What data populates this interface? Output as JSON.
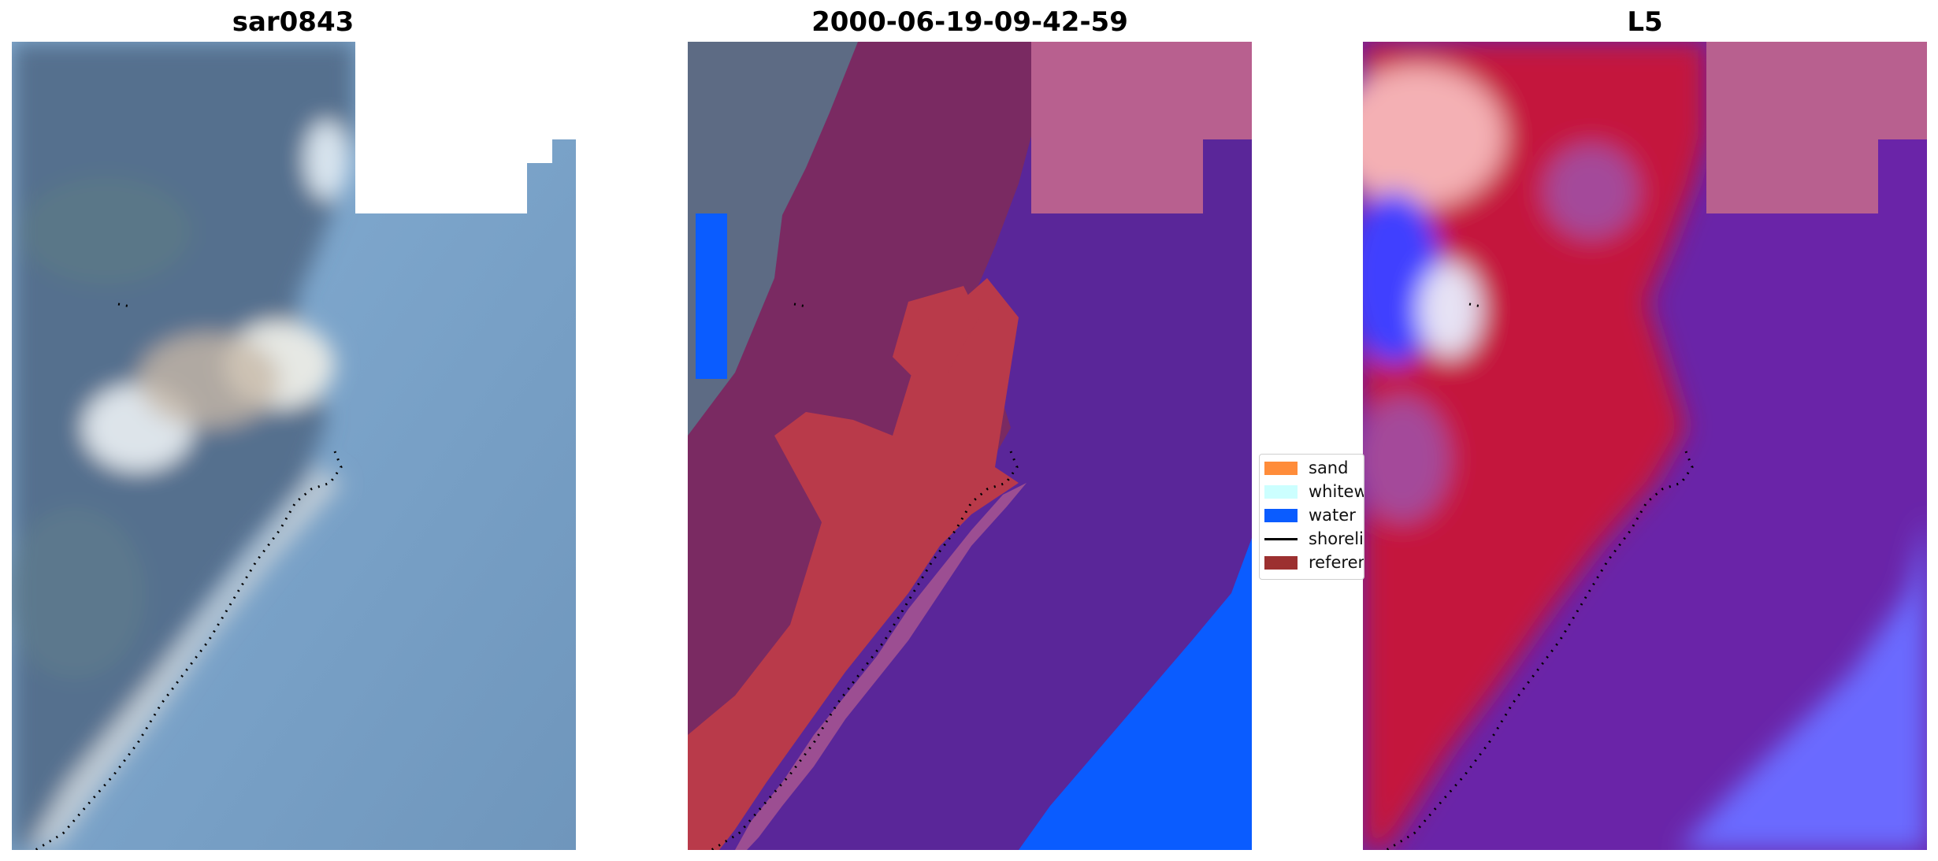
{
  "panels": [
    {
      "title": "sar0843"
    },
    {
      "title": "2000-06-19-09-42-59"
    },
    {
      "title": "L5"
    }
  ],
  "legend": {
    "items": [
      {
        "label": "sand",
        "color": "#ff8c3a",
        "type": "patch"
      },
      {
        "label": "whitewater",
        "color": "#ccffff",
        "type": "patch"
      },
      {
        "label": "water",
        "color": "#0a5cff",
        "type": "patch"
      },
      {
        "label": "shoreline",
        "color": "#000000",
        "type": "line"
      },
      {
        "label": "reference shoreline buffer",
        "color": "#9c3030",
        "type": "patch"
      }
    ]
  },
  "colors": {
    "rgb_sea": "#7aa3c8",
    "rgb_land": "#546f8e",
    "class_sea": "#5a2699",
    "class_water": "#0a5cff",
    "class_sand": "#b93a4a",
    "class_land": "#7a2a62",
    "class_buffer": "#b8608f",
    "mndwi_pos": "#6a24a8",
    "mndwi_neg": "#c4163c",
    "mndwi_blue": "#6b6bff"
  }
}
